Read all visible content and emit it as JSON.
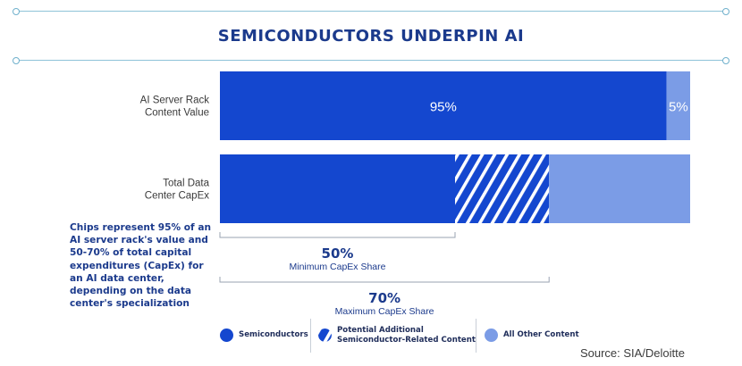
{
  "colors": {
    "semiconductors": "#1447cf",
    "potential": "#1447cf",
    "other": "#7b9ce6",
    "title": "#1b3a8c",
    "rule": "#8ec3d8"
  },
  "chart_data": {
    "type": "bar",
    "orientation": "horizontal",
    "stacked": true,
    "title": "SEMICONDUCTORS UNDERPIN AI",
    "categories": [
      "AI Server Rack\nContent Value",
      "Total Data\nCenter CapEx"
    ],
    "series": [
      {
        "name": "Semiconductors",
        "values": [
          95,
          50
        ],
        "labels": [
          "95%",
          ""
        ]
      },
      {
        "name": "Potential Additional Semiconductor-Related Content",
        "values": [
          0,
          20
        ],
        "labels": [
          "",
          ""
        ]
      },
      {
        "name": "All Other Content",
        "values": [
          5,
          30
        ],
        "labels": [
          "5%",
          ""
        ]
      }
    ],
    "xlim": [
      0,
      100
    ],
    "grid": false,
    "brackets": [
      {
        "from": 0,
        "to": 50,
        "value": "50%",
        "label": "Minimum CapEx Share"
      },
      {
        "from": 0,
        "to": 70,
        "value": "70%",
        "label": "Maximum CapEx Share"
      }
    ],
    "annotation": "Chips represent 95% of an AI server rack's value and 50-70% of total capital expenditures (CapEx) for an AI data center, depending on the data center's specialization",
    "legend": {
      "position": "bottom",
      "items": [
        {
          "label": "Semiconductors",
          "icon": "filled-circle-icon"
        },
        {
          "label": "Potential Additional\nSemiconductor-Related Content",
          "icon": "striped-circle-icon"
        },
        {
          "label": "All Other Content",
          "icon": "light-circle-icon"
        }
      ]
    },
    "source": "Source: SIA/Deloitte"
  }
}
